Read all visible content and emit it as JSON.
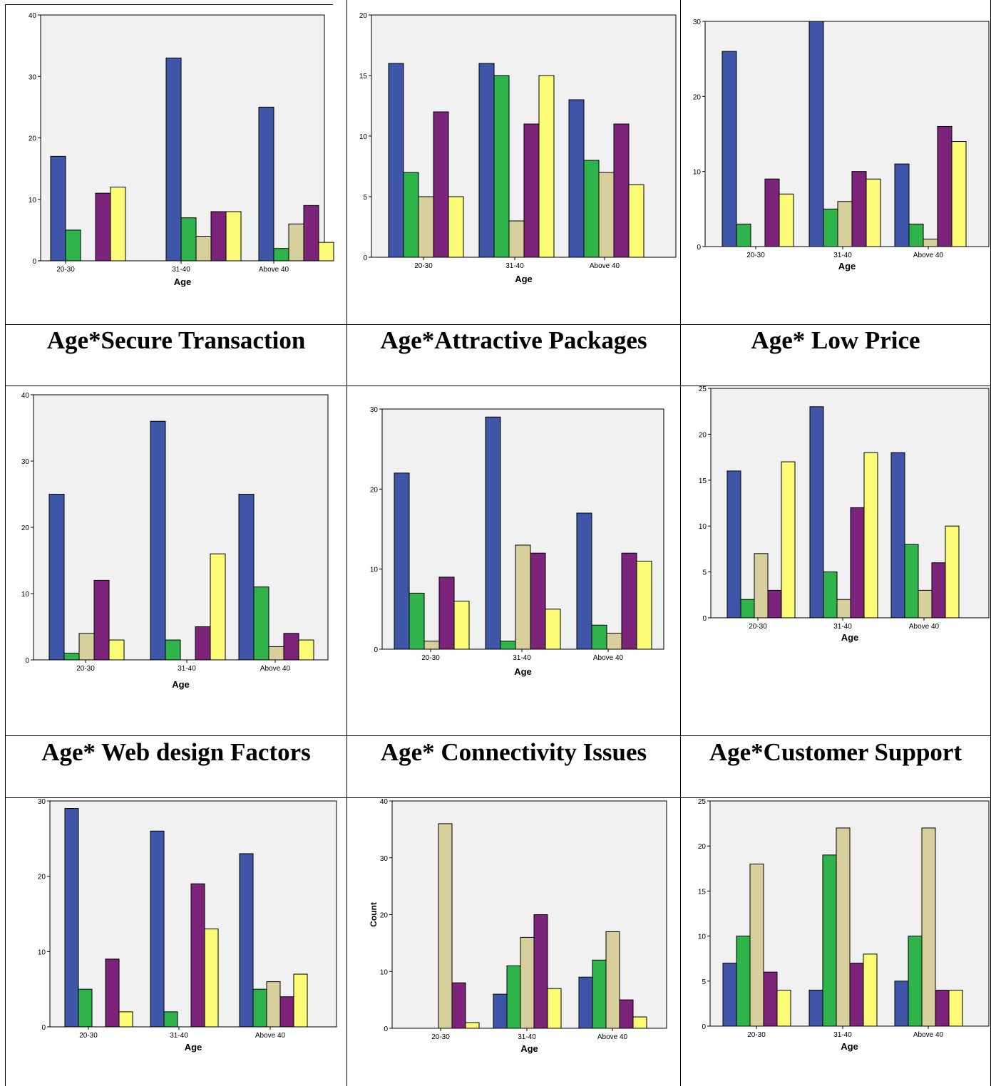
{
  "colors": {
    "series": [
      "#3f56a8",
      "#2fb44c",
      "#d8d09c",
      "#7c247a",
      "#fbfb76"
    ],
    "plot_bg": "#f1f1f1",
    "border": "#000000"
  },
  "captions": {
    "row1": [
      "Age*Secure Transaction",
      "Age*Attractive Packages",
      "Age* Low Price"
    ],
    "row2": [
      "Age* Web design Factors",
      "Age* Connectivity Issues",
      "Age*Customer Support"
    ]
  },
  "chart_data": [
    {
      "type": "bar",
      "title": "",
      "xlabel": "Age",
      "ylabel": "",
      "categories": [
        "20-30",
        "31-40",
        "Above 40"
      ],
      "ylim": [
        0,
        40
      ],
      "yticks": [
        0,
        10,
        20,
        30,
        40
      ],
      "series": [
        {
          "values": [
            17,
            33,
            25
          ]
        },
        {
          "values": [
            5,
            7,
            2
          ]
        },
        {
          "values": [
            0,
            4,
            6
          ]
        },
        {
          "values": [
            11,
            8,
            9
          ]
        },
        {
          "values": [
            12,
            8,
            3
          ]
        }
      ]
    },
    {
      "type": "bar",
      "title": "",
      "xlabel": "Age",
      "ylabel": "",
      "categories": [
        "20-30",
        "31-40",
        "Above 40"
      ],
      "ylim": [
        0,
        20
      ],
      "yticks": [
        0,
        5,
        10,
        15,
        20
      ],
      "series": [
        {
          "values": [
            16,
            16,
            13
          ]
        },
        {
          "values": [
            7,
            15,
            8
          ]
        },
        {
          "values": [
            5,
            3,
            7
          ]
        },
        {
          "values": [
            12,
            11,
            11
          ]
        },
        {
          "values": [
            5,
            15,
            6
          ]
        }
      ]
    },
    {
      "type": "bar",
      "title": "",
      "xlabel": "Age",
      "ylabel": "",
      "categories": [
        "20-30",
        "31-40",
        "Above 40"
      ],
      "ylim": [
        0,
        30
      ],
      "yticks": [
        0,
        10,
        20,
        30
      ],
      "series": [
        {
          "values": [
            26,
            30,
            11
          ]
        },
        {
          "values": [
            3,
            5,
            3
          ]
        },
        {
          "values": [
            0,
            6,
            1
          ]
        },
        {
          "values": [
            9,
            10,
            16
          ]
        },
        {
          "values": [
            7,
            9,
            14
          ]
        }
      ]
    },
    {
      "type": "bar",
      "title": "",
      "xlabel": "Age",
      "ylabel": "",
      "categories": [
        "20-30",
        "31-40",
        "Above 40"
      ],
      "ylim": [
        0,
        40
      ],
      "yticks": [
        0,
        10,
        20,
        30,
        40
      ],
      "series": [
        {
          "values": [
            25,
            36,
            25
          ]
        },
        {
          "values": [
            1,
            3,
            11
          ]
        },
        {
          "values": [
            4,
            0,
            2
          ]
        },
        {
          "values": [
            12,
            5,
            4
          ]
        },
        {
          "values": [
            3,
            16,
            3
          ]
        }
      ]
    },
    {
      "type": "bar",
      "title": "",
      "xlabel": "Age",
      "ylabel": "",
      "categories": [
        "20-30",
        "31-40",
        "Above 40"
      ],
      "ylim": [
        0,
        30
      ],
      "yticks": [
        0,
        10,
        20,
        30
      ],
      "series": [
        {
          "values": [
            22,
            29,
            17
          ]
        },
        {
          "values": [
            7,
            1,
            3
          ]
        },
        {
          "values": [
            1,
            13,
            2
          ]
        },
        {
          "values": [
            9,
            12,
            12
          ]
        },
        {
          "values": [
            6,
            5,
            11
          ]
        }
      ]
    },
    {
      "type": "bar",
      "title": "",
      "xlabel": "Age",
      "ylabel": "",
      "categories": [
        "20-30",
        "31-40",
        "Above 40"
      ],
      "ylim": [
        0,
        25
      ],
      "yticks": [
        0,
        5,
        10,
        15,
        20,
        25
      ],
      "series": [
        {
          "values": [
            16,
            23,
            18
          ]
        },
        {
          "values": [
            2,
            5,
            8
          ]
        },
        {
          "values": [
            7,
            2,
            3
          ]
        },
        {
          "values": [
            3,
            12,
            6
          ]
        },
        {
          "values": [
            17,
            18,
            10
          ]
        }
      ]
    },
    {
      "type": "bar",
      "title": "",
      "xlabel": "Age",
      "ylabel": "",
      "categories": [
        "20-30",
        "31-40",
        "Above 40"
      ],
      "ylim": [
        0,
        30
      ],
      "yticks": [
        0,
        10,
        20,
        30
      ],
      "series": [
        {
          "values": [
            29,
            26,
            23
          ]
        },
        {
          "values": [
            5,
            2,
            5
          ]
        },
        {
          "values": [
            0,
            0,
            6
          ]
        },
        {
          "values": [
            9,
            19,
            4
          ]
        },
        {
          "values": [
            2,
            13,
            7
          ]
        }
      ]
    },
    {
      "type": "bar",
      "title": "",
      "xlabel": "Age",
      "ylabel": "Count",
      "categories": [
        "20-30",
        "31-40",
        "Above 40"
      ],
      "ylim": [
        0,
        40
      ],
      "yticks": [
        0,
        10,
        20,
        30,
        40
      ],
      "series": [
        {
          "values": [
            0,
            6,
            9
          ]
        },
        {
          "values": [
            0,
            11,
            12
          ]
        },
        {
          "values": [
            36,
            16,
            17
          ]
        },
        {
          "values": [
            8,
            20,
            5
          ]
        },
        {
          "values": [
            1,
            7,
            2
          ]
        }
      ]
    },
    {
      "type": "bar",
      "title": "",
      "xlabel": "Age",
      "ylabel": "",
      "categories": [
        "20-30",
        "31-40",
        "Above 40"
      ],
      "ylim": [
        0,
        25
      ],
      "yticks": [
        0,
        5,
        10,
        15,
        20,
        25
      ],
      "series": [
        {
          "values": [
            7,
            4,
            5
          ]
        },
        {
          "values": [
            10,
            19,
            10
          ]
        },
        {
          "values": [
            18,
            22,
            22
          ]
        },
        {
          "values": [
            6,
            7,
            4
          ]
        },
        {
          "values": [
            4,
            8,
            4
          ]
        }
      ]
    }
  ]
}
